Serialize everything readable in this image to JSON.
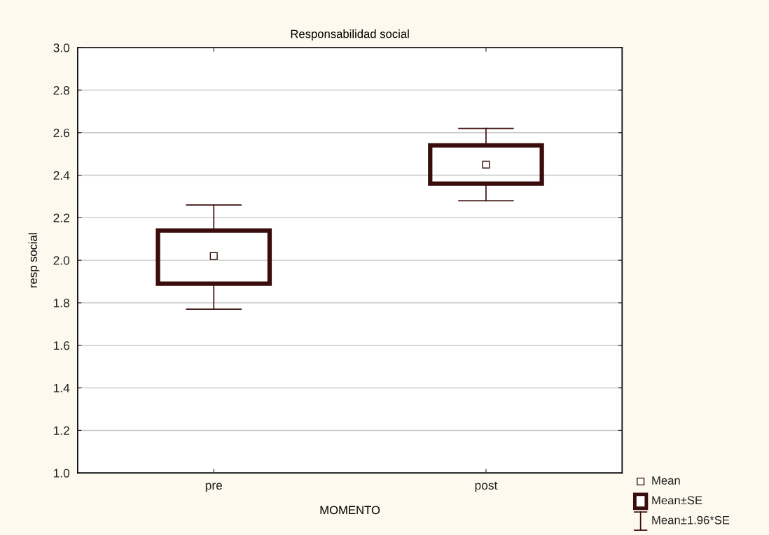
{
  "chart_data": {
    "type": "box",
    "title": "Responsabilidad social",
    "xlabel": "MOMENTO",
    "ylabel": "resp social",
    "categories": [
      "pre",
      "post"
    ],
    "color": "#3a0c0c",
    "boxes": [
      {
        "low": 1.77,
        "q1": 1.89,
        "q3": 2.14,
        "high": 2.26,
        "mean": 2.02
      },
      {
        "low": 2.28,
        "q1": 2.36,
        "q3": 2.54,
        "high": 2.62,
        "mean": 2.45
      }
    ],
    "ylim": [
      1.0,
      3.0
    ],
    "yticks": [
      {
        "value": 1.0,
        "label": "1.0"
      },
      1.2,
      1.4,
      1.6,
      1.8,
      {
        "value": 2.0,
        "label": "2.0"
      },
      2.2,
      2.4,
      2.6,
      2.8,
      {
        "value": 3.0,
        "label": "3.0"
      }
    ],
    "grid": "y",
    "annotations": [
      "Mean",
      "Mean±SE",
      "Mean±1.96*SE"
    ]
  }
}
